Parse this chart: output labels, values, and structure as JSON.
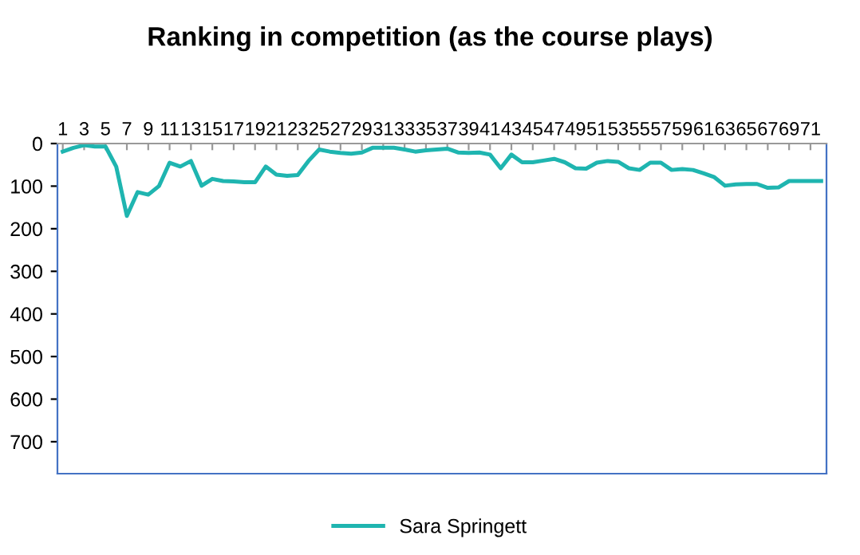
{
  "chart_data": {
    "type": "line",
    "title": "Ranking in competition (as the course plays)",
    "categories": [
      "1",
      null,
      "3",
      null,
      "5",
      null,
      "7",
      null,
      "9",
      null,
      "11",
      null,
      "13",
      null,
      "15",
      null,
      "17",
      null,
      "19",
      null,
      "21",
      null,
      "23",
      null,
      "25",
      null,
      "27",
      null,
      "29",
      null,
      "31",
      null,
      "33",
      null,
      "35",
      null,
      "37",
      null,
      "39",
      null,
      "41",
      null,
      "43",
      null,
      "45",
      null,
      "47",
      null,
      "49",
      null,
      "51",
      null,
      "53",
      null,
      "55",
      null,
      "57",
      null,
      "59",
      null,
      "61",
      null,
      "63",
      null,
      "65",
      null,
      "67",
      null,
      "69",
      null,
      "71",
      null
    ],
    "series": [
      {
        "name": "Sara Springett",
        "color": "#1fb5b0",
        "values": [
          19,
          10,
          4,
          7,
          7,
          54,
          170,
          114,
          120,
          100,
          45,
          54,
          41,
          99,
          83,
          88,
          89,
          91,
          91,
          54,
          73,
          76,
          74,
          41,
          14,
          19,
          22,
          24,
          21,
          10,
          10,
          10,
          14,
          19,
          16,
          14,
          12,
          21,
          22,
          21,
          26,
          58,
          26,
          44,
          44,
          40,
          36,
          44,
          58,
          59,
          45,
          41,
          43,
          58,
          62,
          45,
          45,
          62,
          60,
          62,
          70,
          79,
          99,
          96,
          95,
          95,
          104,
          103,
          88,
          88,
          88,
          88
        ]
      }
    ],
    "ylim": [
      775,
      0
    ],
    "yticks": [
      0,
      100,
      200,
      300,
      400,
      500,
      600,
      700
    ],
    "grid": false,
    "legend": "bottom",
    "marker": "none",
    "line_style": "solid"
  }
}
